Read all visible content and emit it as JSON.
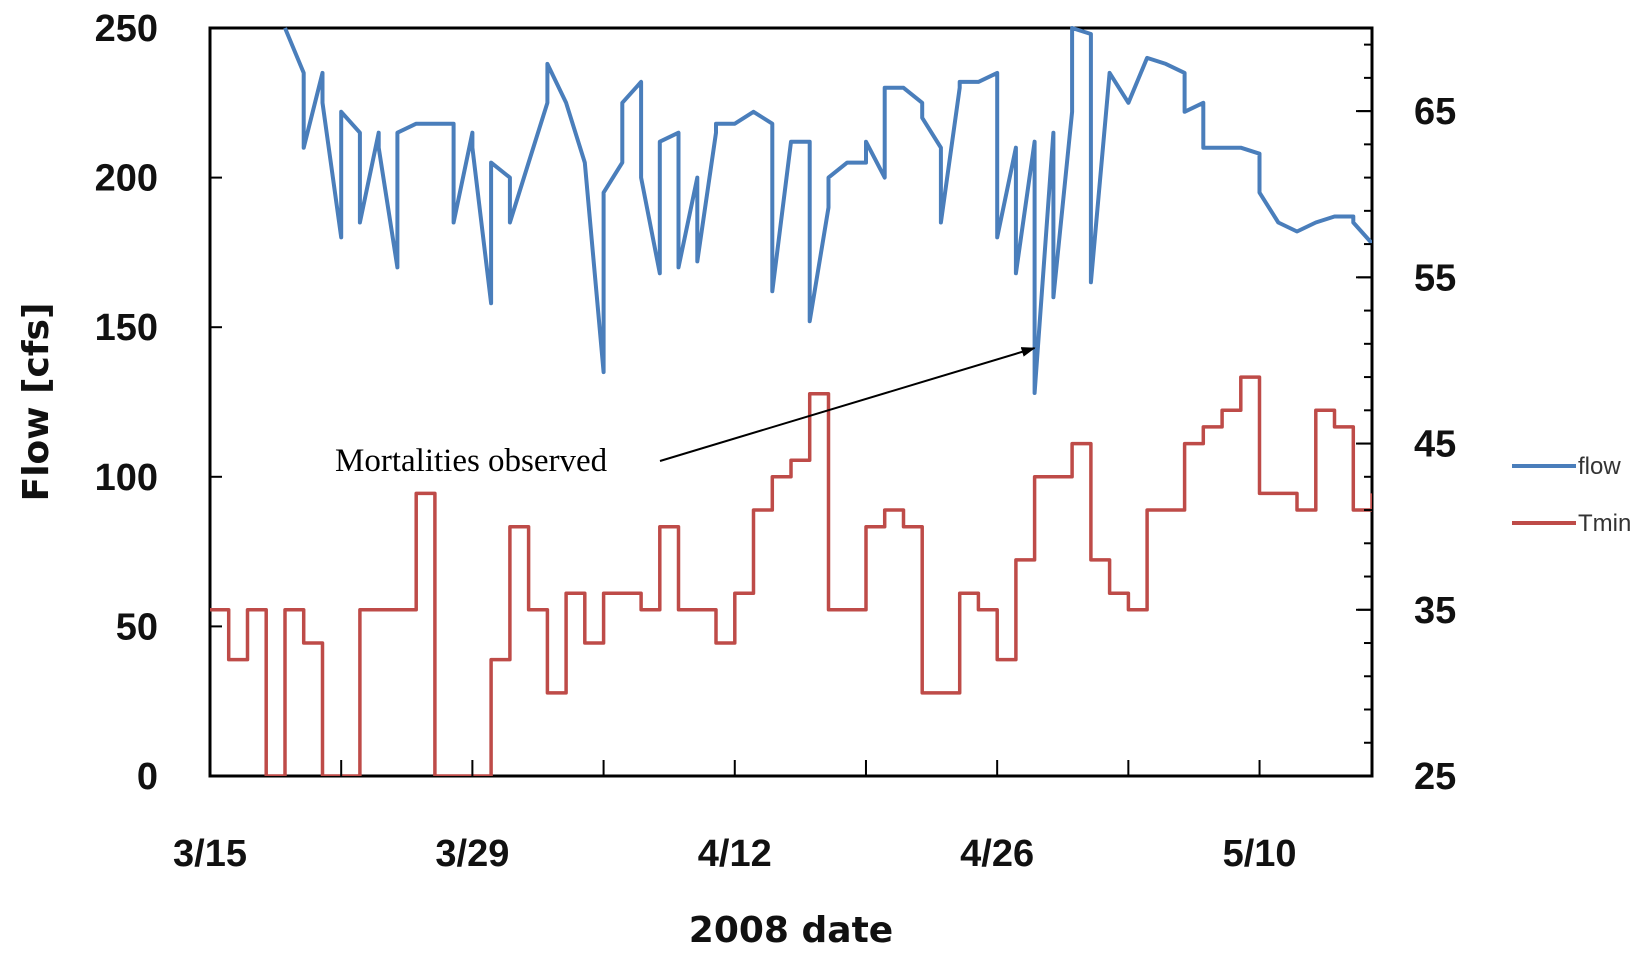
{
  "chart_data": {
    "type": "line",
    "title": "",
    "xlabel": "2008 date",
    "ylabel": "Flow  [cfs]",
    "y2label": "",
    "x_tick_labels": [
      "3/15",
      "3/29",
      "4/12",
      "4/26",
      "5/10"
    ],
    "x_tick_dates": [
      "2008-03-15",
      "2008-03-29",
      "2008-04-12",
      "2008-04-26",
      "2008-05-10"
    ],
    "xlim": [
      "2008-03-15",
      "2008-05-16"
    ],
    "ylim": [
      0,
      250
    ],
    "y_ticks": [
      0,
      50,
      100,
      150,
      200,
      250
    ],
    "y_tick_labels": [
      "0",
      "50",
      "100",
      "150",
      "200",
      "250"
    ],
    "y2lim": [
      25,
      70
    ],
    "y2_ticks": [
      25,
      35,
      45,
      55,
      65
    ],
    "y2_tick_labels": [
      "25",
      "35",
      "45",
      "55",
      "65"
    ],
    "grid": false,
    "legend_position": "right",
    "series": [
      {
        "name": "flow",
        "axis": "left",
        "color": "#4a7ebb",
        "style": "line",
        "points": [
          [
            "2008-03-19",
            250
          ],
          [
            "2008-03-20",
            235
          ],
          [
            "2008-03-20",
            210
          ],
          [
            "2008-03-21",
            235
          ],
          [
            "2008-03-21",
            225
          ],
          [
            "2008-03-22",
            180
          ],
          [
            "2008-03-22",
            222
          ],
          [
            "2008-03-23",
            215
          ],
          [
            "2008-03-23",
            185
          ],
          [
            "2008-03-24",
            215
          ],
          [
            "2008-03-24",
            210
          ],
          [
            "2008-03-25",
            170
          ],
          [
            "2008-03-25",
            215
          ],
          [
            "2008-03-26",
            218
          ],
          [
            "2008-03-27",
            218
          ],
          [
            "2008-03-28",
            218
          ],
          [
            "2008-03-28",
            185
          ],
          [
            "2008-03-29",
            215
          ],
          [
            "2008-03-29",
            210
          ],
          [
            "2008-03-30",
            158
          ],
          [
            "2008-03-30",
            205
          ],
          [
            "2008-03-31",
            200
          ],
          [
            "2008-03-31",
            185
          ],
          [
            "2008-04-01",
            205
          ],
          [
            "2008-04-02",
            225
          ],
          [
            "2008-04-02",
            238
          ],
          [
            "2008-04-03",
            225
          ],
          [
            "2008-04-04",
            205
          ],
          [
            "2008-04-05",
            135
          ],
          [
            "2008-04-05",
            195
          ],
          [
            "2008-04-06",
            205
          ],
          [
            "2008-04-06",
            225
          ],
          [
            "2008-04-07",
            232
          ],
          [
            "2008-04-07",
            200
          ],
          [
            "2008-04-08",
            168
          ],
          [
            "2008-04-08",
            212
          ],
          [
            "2008-04-09",
            215
          ],
          [
            "2008-04-09",
            170
          ],
          [
            "2008-04-10",
            200
          ],
          [
            "2008-04-10",
            172
          ],
          [
            "2008-04-11",
            215
          ],
          [
            "2008-04-11",
            218
          ],
          [
            "2008-04-12",
            218
          ],
          [
            "2008-04-13",
            222
          ],
          [
            "2008-04-14",
            218
          ],
          [
            "2008-04-14",
            162
          ],
          [
            "2008-04-15",
            212
          ],
          [
            "2008-04-16",
            212
          ],
          [
            "2008-04-16",
            152
          ],
          [
            "2008-04-17",
            190
          ],
          [
            "2008-04-17",
            200
          ],
          [
            "2008-04-18",
            205
          ],
          [
            "2008-04-19",
            205
          ],
          [
            "2008-04-19",
            212
          ],
          [
            "2008-04-20",
            200
          ],
          [
            "2008-04-20",
            230
          ],
          [
            "2008-04-21",
            230
          ],
          [
            "2008-04-22",
            225
          ],
          [
            "2008-04-22",
            220
          ],
          [
            "2008-04-23",
            210
          ],
          [
            "2008-04-23",
            185
          ],
          [
            "2008-04-24",
            230
          ],
          [
            "2008-04-24",
            232
          ],
          [
            "2008-04-25",
            232
          ],
          [
            "2008-04-26",
            235
          ],
          [
            "2008-04-26",
            180
          ],
          [
            "2008-04-27",
            210
          ],
          [
            "2008-04-27",
            168
          ],
          [
            "2008-04-28",
            212
          ],
          [
            "2008-04-28",
            128
          ],
          [
            "2008-04-29",
            215
          ],
          [
            "2008-04-29",
            160
          ],
          [
            "2008-04-30",
            222
          ],
          [
            "2008-04-30",
            250
          ],
          [
            "2008-05-01",
            248
          ],
          [
            "2008-05-01",
            165
          ],
          [
            "2008-05-02",
            235
          ],
          [
            "2008-05-03",
            225
          ],
          [
            "2008-05-04",
            240
          ],
          [
            "2008-05-05",
            238
          ],
          [
            "2008-05-06",
            235
          ],
          [
            "2008-05-06",
            222
          ],
          [
            "2008-05-07",
            225
          ],
          [
            "2008-05-07",
            210
          ],
          [
            "2008-05-08",
            210
          ],
          [
            "2008-05-09",
            210
          ],
          [
            "2008-05-10",
            208
          ],
          [
            "2008-05-10",
            195
          ],
          [
            "2008-05-11",
            185
          ],
          [
            "2008-05-12",
            182
          ],
          [
            "2008-05-13",
            185
          ],
          [
            "2008-05-14",
            187
          ],
          [
            "2008-05-15",
            187
          ],
          [
            "2008-05-15",
            185
          ],
          [
            "2008-05-16",
            178
          ]
        ]
      },
      {
        "name": "Tmin",
        "axis": "right",
        "color": "#be4b48",
        "style": "step",
        "points": [
          [
            "2008-03-15",
            35
          ],
          [
            "2008-03-16",
            32
          ],
          [
            "2008-03-17",
            35
          ],
          [
            "2008-03-18",
            25
          ],
          [
            "2008-03-19",
            35
          ],
          [
            "2008-03-20",
            33
          ],
          [
            "2008-03-21",
            25
          ],
          [
            "2008-03-22",
            25
          ],
          [
            "2008-03-23",
            35
          ],
          [
            "2008-03-24",
            35
          ],
          [
            "2008-03-25",
            35
          ],
          [
            "2008-03-26",
            42
          ],
          [
            "2008-03-27",
            25
          ],
          [
            "2008-03-28",
            25
          ],
          [
            "2008-03-29",
            25
          ],
          [
            "2008-03-30",
            32
          ],
          [
            "2008-03-31",
            40
          ],
          [
            "2008-04-01",
            35
          ],
          [
            "2008-04-02",
            30
          ],
          [
            "2008-04-03",
            36
          ],
          [
            "2008-04-04",
            33
          ],
          [
            "2008-04-05",
            36
          ],
          [
            "2008-04-06",
            36
          ],
          [
            "2008-04-07",
            35
          ],
          [
            "2008-04-08",
            40
          ],
          [
            "2008-04-09",
            35
          ],
          [
            "2008-04-10",
            35
          ],
          [
            "2008-04-11",
            33
          ],
          [
            "2008-04-12",
            36
          ],
          [
            "2008-04-13",
            41
          ],
          [
            "2008-04-14",
            43
          ],
          [
            "2008-04-15",
            44
          ],
          [
            "2008-04-16",
            48
          ],
          [
            "2008-04-17",
            35
          ],
          [
            "2008-04-18",
            35
          ],
          [
            "2008-04-19",
            40
          ],
          [
            "2008-04-20",
            41
          ],
          [
            "2008-04-21",
            40
          ],
          [
            "2008-04-22",
            30
          ],
          [
            "2008-04-23",
            30
          ],
          [
            "2008-04-24",
            36
          ],
          [
            "2008-04-25",
            35
          ],
          [
            "2008-04-26",
            32
          ],
          [
            "2008-04-27",
            38
          ],
          [
            "2008-04-28",
            43
          ],
          [
            "2008-04-29",
            43
          ],
          [
            "2008-04-30",
            45
          ],
          [
            "2008-05-01",
            38
          ],
          [
            "2008-05-02",
            36
          ],
          [
            "2008-05-03",
            35
          ],
          [
            "2008-05-04",
            41
          ],
          [
            "2008-05-05",
            41
          ],
          [
            "2008-05-06",
            45
          ],
          [
            "2008-05-07",
            46
          ],
          [
            "2008-05-08",
            47
          ],
          [
            "2008-05-09",
            49
          ],
          [
            "2008-05-10",
            42
          ],
          [
            "2008-05-11",
            42
          ],
          [
            "2008-05-12",
            41
          ],
          [
            "2008-05-13",
            47
          ],
          [
            "2008-05-14",
            46
          ],
          [
            "2008-05-15",
            41
          ],
          [
            "2008-05-16",
            42
          ]
        ]
      }
    ],
    "annotations": [
      {
        "text": "Mortalities observed",
        "points_to": [
          "2008-04-28",
          143
        ]
      }
    ]
  }
}
